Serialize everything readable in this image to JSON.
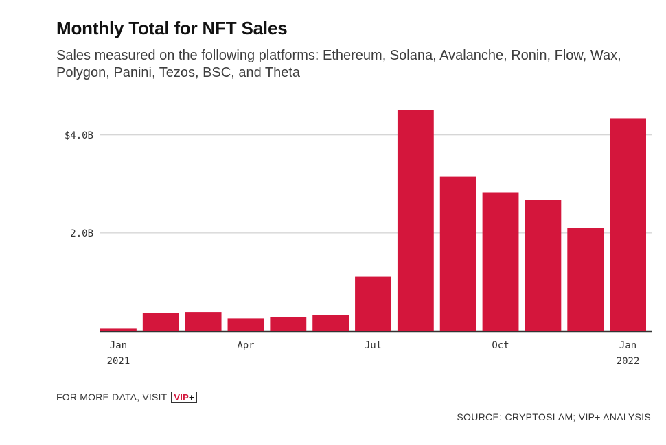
{
  "chart_data": {
    "type": "bar",
    "title": "Monthly Total for NFT Sales",
    "subtitle": "Sales measured on the following platforms: Ethereum, Solana, Avalanche, Ronin, Flow, Wax, Polygon, Panini, Tezos, BSC, and Theta",
    "xlabel": "",
    "ylabel": "",
    "categories": [
      "Jan 2021",
      "Feb 2021",
      "Mar 2021",
      "Apr 2021",
      "May 2021",
      "Jun 2021",
      "Jul 2021",
      "Aug 2021",
      "Sep 2021",
      "Oct 2021",
      "Nov 2021",
      "Dec 2021",
      "Jan 2022"
    ],
    "values": [
      0.05,
      0.37,
      0.39,
      0.26,
      0.29,
      0.33,
      1.11,
      4.5,
      3.15,
      2.83,
      2.68,
      2.1,
      4.34
    ],
    "unit": "B USD",
    "ylim": [
      0,
      4.5
    ],
    "y_ticks": [
      {
        "value": 4.0,
        "label": "$4.0B"
      },
      {
        "value": 2.0,
        "label": "2.0B"
      }
    ],
    "x_ticks": [
      {
        "index": 0,
        "line1": "Jan",
        "line2": "2021"
      },
      {
        "index": 3,
        "line1": "Apr",
        "line2": ""
      },
      {
        "index": 6,
        "line1": "Jul",
        "line2": ""
      },
      {
        "index": 9,
        "line1": "Oct",
        "line2": ""
      },
      {
        "index": 12,
        "line1": "Jan",
        "line2": "2022"
      }
    ],
    "bar_color": "#d4163c",
    "grid": true
  },
  "footer": {
    "visit_text": "FOR MORE DATA, VISIT",
    "vip_label": "VIP",
    "vip_plus": "+",
    "source": "SOURCE: CRYPTOSLAM; VIP+ ANALYSIS"
  }
}
